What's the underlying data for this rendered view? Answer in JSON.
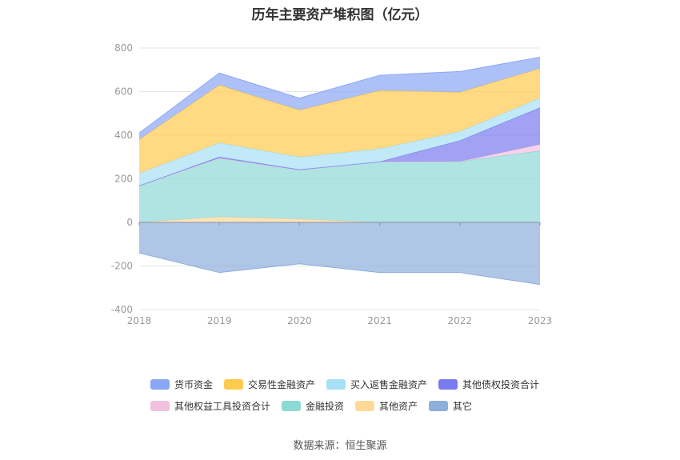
{
  "chart_data": {
    "type": "area",
    "title": "历年主要资产堆积图（亿元）",
    "xlabel": "",
    "ylabel": "",
    "categories": [
      "2018",
      "2019",
      "2020",
      "2021",
      "2022",
      "2023"
    ],
    "ylim": [
      -400,
      800
    ],
    "yticks": [
      800,
      600,
      400,
      200,
      0,
      -200,
      -400
    ],
    "grid": true,
    "legend_position": "bottom",
    "stacked": true,
    "series": [
      {
        "name": "其他资产",
        "color": "#ffd999",
        "values": [
          0,
          25,
          15,
          0,
          0,
          0
        ]
      },
      {
        "name": "金融投资",
        "color": "#8dd9d5",
        "values": [
          168,
          270,
          225,
          278,
          280,
          328
        ]
      },
      {
        "name": "其他权益工具投资合计",
        "color": "#f0c0de",
        "values": [
          0,
          0,
          0,
          0,
          0,
          30
        ]
      },
      {
        "name": "其他债权投资合计",
        "color": "#7b7bf0",
        "values": [
          0,
          5,
          2,
          0,
          95,
          168
        ]
      },
      {
        "name": "买入返售金融资产",
        "color": "#a8e0f5",
        "values": [
          57,
          65,
          58,
          60,
          42,
          45
        ]
      },
      {
        "name": "交易性金融资产",
        "color": "#ffcb4f",
        "values": [
          155,
          265,
          215,
          267,
          180,
          135
        ]
      },
      {
        "name": "货币资金",
        "color": "#8aa7f5",
        "values": [
          30,
          55,
          55,
          70,
          95,
          52
        ]
      },
      {
        "name": "其它",
        "color": "#8eaedb",
        "values": [
          -140,
          -230,
          -190,
          -230,
          -230,
          -285
        ]
      }
    ]
  },
  "legend": {
    "row1": [
      {
        "label": "货币资金",
        "color": "#8aa7f5"
      },
      {
        "label": "交易性金融资产",
        "color": "#ffcb4f"
      },
      {
        "label": "买入返售金融资产",
        "color": "#a8e0f5"
      },
      {
        "label": "其他债权投资合计",
        "color": "#7b7bf0"
      }
    ],
    "row2": [
      {
        "label": "其他权益工具投资合计",
        "color": "#f0c0de"
      },
      {
        "label": "金融投资",
        "color": "#8dd9d5"
      },
      {
        "label": "其他资产",
        "color": "#ffd999"
      },
      {
        "label": "其它",
        "color": "#8eaedb"
      }
    ]
  },
  "source": "数据来源：恒生聚源"
}
